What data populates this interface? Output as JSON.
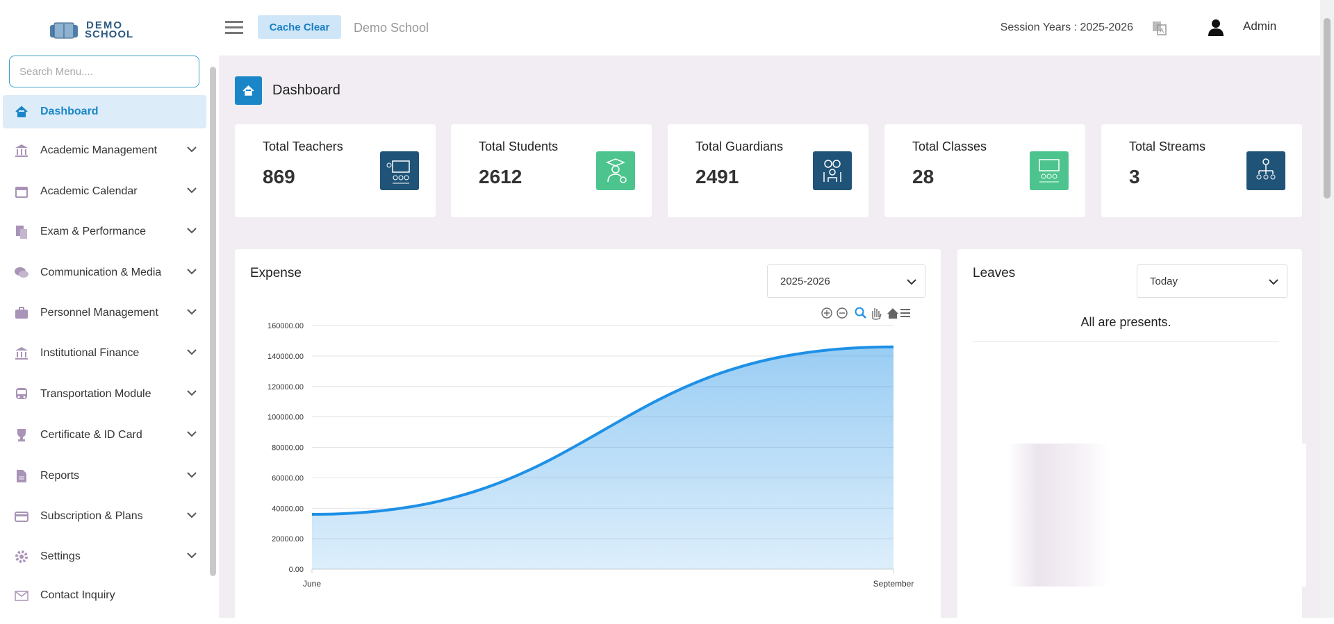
{
  "header": {
    "logo_top": "DEMO",
    "logo_bottom": "SCHOOL",
    "cache_button": "Cache Clear",
    "school": "Demo School",
    "session": "Session Years : 2025-2026",
    "user": "Admin"
  },
  "sidebar": {
    "search_placeholder": "Search Menu....",
    "items": [
      "Dashboard",
      "Academic Management",
      "Academic Calendar",
      "Exam & Performance",
      "Communication & Media",
      "Personnel Management",
      "Institutional Finance",
      "Transportation Module",
      "Certificate & ID Card",
      "Reports",
      "Subscription & Plans",
      "Settings",
      "Contact Inquiry"
    ]
  },
  "page_title": "Dashboard",
  "stats": [
    {
      "label": "Total Teachers",
      "value": 869
    },
    {
      "label": "Total Students",
      "value": 2612
    },
    {
      "label": "Total Guardians",
      "value": 2491
    },
    {
      "label": "Total Classes",
      "value": 28
    },
    {
      "label": "Total Streams",
      "value": 3
    }
  ],
  "chart_data": {
    "type": "area",
    "title": "Expense",
    "selector": "2025-2026",
    "categories": [
      "June",
      "September"
    ],
    "values": [
      36000,
      146000
    ],
    "color": "#1e90e6",
    "ylim": [
      0,
      160000
    ],
    "yticks": [
      {
        "value": 0,
        "label": "0.00"
      },
      {
        "value": 20000,
        "label": "20000.00"
      },
      {
        "value": 40000,
        "label": "40000.00"
      },
      {
        "value": 60000,
        "label": "60000.00"
      },
      {
        "value": 80000,
        "label": "80000.00"
      },
      {
        "value": 100000,
        "label": "100000.00"
      },
      {
        "value": 120000,
        "label": "120000.00"
      },
      {
        "value": 140000,
        "label": "140000.00"
      },
      {
        "value": 160000,
        "label": "160000.00"
      }
    ],
    "grid": true
  },
  "leaves": {
    "title": "Leaves",
    "filter": "Today",
    "message": "All are presents."
  }
}
